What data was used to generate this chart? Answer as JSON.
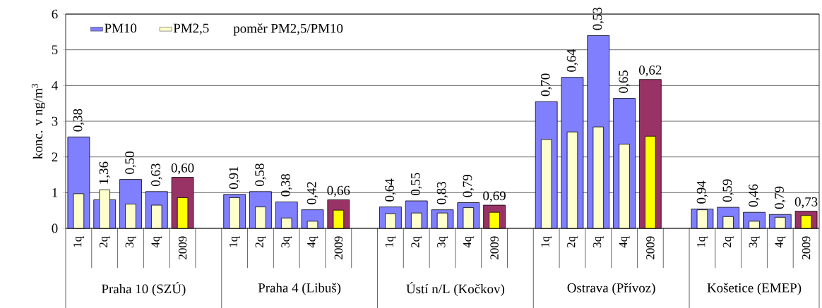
{
  "chart_data": {
    "type": "bar",
    "ylabel": "konc. v ng/m$^{3}$",
    "categories": [
      "1q",
      "2q",
      "3q",
      "4q",
      "2009",
      null,
      "1q",
      "2q",
      "3q",
      "4q",
      "2009",
      null,
      "1q",
      "2q",
      "3q",
      "4q",
      "2009",
      null,
      "1q",
      "2q",
      "3q",
      "4q",
      "2009",
      null,
      "1q",
      "2q",
      "3q",
      "4q",
      "2009"
    ],
    "series": [
      {
        "name": "PM10",
        "color": "#8080ff",
        "colors": [
          "#8080ff",
          "#8080ff",
          "#8080ff",
          "#8080ff",
          "#993366",
          null,
          "#8080ff",
          "#8080ff",
          "#8080ff",
          "#8080ff",
          "#993366",
          null,
          "#8080ff",
          "#8080ff",
          "#8080ff",
          "#8080ff",
          "#993366",
          null,
          "#8080ff",
          "#8080ff",
          "#8080ff",
          "#8080ff",
          "#993366",
          null,
          "#8080ff",
          "#8080ff",
          "#8080ff",
          "#8080ff",
          "#993366"
        ],
        "values": [
          2.56,
          0.8,
          1.37,
          1.03,
          1.43,
          null,
          0.95,
          1.03,
          0.74,
          0.52,
          0.8,
          null,
          0.6,
          0.77,
          0.52,
          0.72,
          0.65,
          null,
          3.55,
          4.23,
          5.4,
          3.64,
          4.17,
          null,
          0.54,
          0.59,
          0.45,
          0.39,
          0.48
        ]
      },
      {
        "name": "PM2,5",
        "color": "#ffffcc",
        "colors": [
          "#ffffcc",
          "#ffffcc",
          "#ffffcc",
          "#ffffcc",
          "#ffff00",
          null,
          "#ffffcc",
          "#ffffcc",
          "#ffffcc",
          "#ffffcc",
          "#ffff00",
          null,
          "#ffffcc",
          "#ffffcc",
          "#ffffcc",
          "#ffffcc",
          "#ffff00",
          null,
          "#ffffcc",
          "#ffffcc",
          "#ffffcc",
          "#ffffcc",
          "#ffff00",
          null,
          "#ffffcc",
          "#ffffcc",
          "#ffffcc",
          "#ffffcc",
          "#ffff00"
        ],
        "values": [
          0.97,
          1.08,
          0.68,
          0.65,
          0.86,
          null,
          0.86,
          0.6,
          0.29,
          0.2,
          0.51,
          null,
          0.41,
          0.43,
          0.43,
          0.58,
          0.45,
          null,
          2.49,
          2.7,
          2.84,
          2.36,
          2.58,
          null,
          0.52,
          0.33,
          0.2,
          0.31,
          0.36
        ]
      }
    ],
    "annotations": [
      "poměr PM2,5/PM10",
      "Praha 10 (SZÚ)",
      "Praha 4 (Libuš)",
      "Ústí n/L (Kočkov)",
      "Ostrava (Přívoz)",
      "Košetice (EMEP)",
      "0,38",
      "1,36",
      "0,50",
      "0,63",
      "0,60",
      "0,91",
      "0,58",
      "0,38",
      "0,42",
      "0,66",
      "0,64",
      "0,55",
      "0,83",
      "0,79",
      "0,69",
      "0,70",
      "0,64",
      "0,53",
      "0,65",
      "0,62",
      "0,94",
      "0,59",
      "0,46",
      "0,79",
      "0,73"
    ],
    "ylim": [
      0,
      6
    ],
    "yticks": [
      0,
      1,
      2,
      3,
      4,
      5,
      6
    ],
    "grid": "y",
    "legend": "top left"
  }
}
